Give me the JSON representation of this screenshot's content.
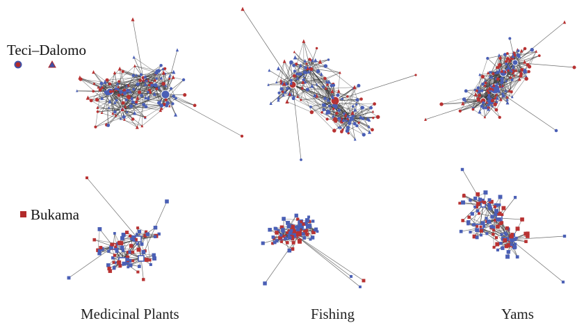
{
  "legend": {
    "village_a": {
      "label": "Teci–Dalomo",
      "color": "#3f51a8",
      "marker_fill": "#b22a2a"
    },
    "village_b": {
      "label": "Bukama",
      "color": "#b22a2a"
    }
  },
  "panels": [
    {
      "caption": "Medicinal Plants",
      "top_marker": "mixed",
      "bottom_marker": "square"
    },
    {
      "caption": "Fishing",
      "top_marker": "mixed",
      "bottom_marker": "square"
    },
    {
      "caption": "Yams",
      "top_marker": "mixed",
      "bottom_marker": "square"
    }
  ],
  "colors": {
    "edge": "#3a3a3a",
    "blue_node": "#4a5fb5",
    "red_node": "#b83232"
  }
}
